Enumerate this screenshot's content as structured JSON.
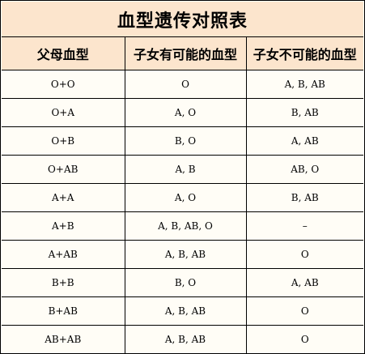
{
  "title": "血型遗传对照表",
  "headers": [
    "父母血型",
    "子女有可能的血型",
    "子女不可能的血型"
  ],
  "rows": [
    [
      "O+O",
      "O",
      "A, B, AB"
    ],
    [
      "O+A",
      "A, O",
      "B, AB"
    ],
    [
      "O+B",
      "B, O",
      "A, AB"
    ],
    [
      "O+AB",
      "A, B",
      "AB, O"
    ],
    [
      "A+A",
      "A, O",
      "B, AB"
    ],
    [
      "A+B",
      "A, B, AB, O",
      "–"
    ],
    [
      "A+AB",
      "A, B, AB",
      "O"
    ],
    [
      "B+B",
      "B, O",
      "A, AB"
    ],
    [
      "B+AB",
      "A, B, AB",
      "O"
    ],
    [
      "AB+AB",
      "A, B, AB",
      "O"
    ]
  ],
  "colors": {
    "header_background": "#fce5cd",
    "body_background": "#fffdf6",
    "border": "#000000"
  }
}
